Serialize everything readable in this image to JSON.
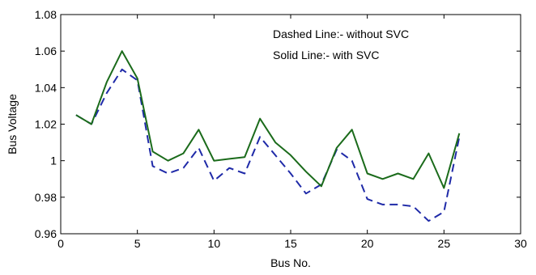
{
  "chart_data": {
    "type": "line",
    "title": "",
    "xlabel": "Bus No.",
    "ylabel": "Bus Voltage",
    "xlim": [
      0,
      30
    ],
    "ylim": [
      0.96,
      1.08
    ],
    "x_ticks": [
      0,
      5,
      10,
      15,
      20,
      25,
      30
    ],
    "y_ticks": [
      0.96,
      0.98,
      1,
      1.02,
      1.04,
      1.06,
      1.08
    ],
    "x_tick_labels": [
      "0",
      "5",
      "10",
      "15",
      "20",
      "25",
      "30"
    ],
    "y_tick_labels": [
      "0.96",
      "0.98",
      "1",
      "1.02",
      "1.04",
      "1.06",
      "1.08"
    ],
    "grid": false,
    "annotations": [
      "Dashed Line:- without SVC",
      "Solid Line:- with SVC"
    ],
    "x": [
      1,
      2,
      3,
      4,
      5,
      6,
      7,
      8,
      9,
      10,
      11,
      12,
      13,
      14,
      15,
      16,
      17,
      18,
      19,
      20,
      21,
      22,
      23,
      24,
      25,
      26
    ],
    "series": [
      {
        "style": "dashed",
        "color": "#1f2aa8",
        "values": [
          1.025,
          1.02,
          1.037,
          1.05,
          1.044,
          0.997,
          0.993,
          0.996,
          1.007,
          0.989,
          0.996,
          0.993,
          1.013,
          1.003,
          0.993,
          0.982,
          0.987,
          1.006,
          1.0,
          0.979,
          0.976,
          0.976,
          0.975,
          0.967,
          0.972,
          1.013
        ]
      },
      {
        "style": "solid",
        "color": "#1b6b1b",
        "values": [
          1.025,
          1.02,
          1.043,
          1.06,
          1.045,
          1.005,
          1.0,
          1.004,
          1.017,
          1.0,
          1.001,
          1.002,
          1.023,
          1.01,
          1.003,
          0.994,
          0.986,
          1.007,
          1.017,
          0.993,
          0.99,
          0.993,
          0.99,
          1.004,
          0.985,
          1.015
        ]
      }
    ]
  }
}
